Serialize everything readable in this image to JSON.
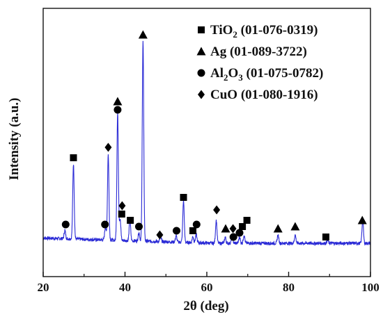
{
  "chart_data": {
    "type": "line",
    "xlabel": "2θ (deg)",
    "ylabel": "Intensity (a.u.)",
    "xlim": [
      20,
      100
    ],
    "ylim": [
      0,
      100
    ],
    "x_ticks": [
      "20",
      "40",
      "60",
      "80",
      "100"
    ],
    "y_ticks_shown": false,
    "grid": false,
    "legend_position": "top-right",
    "line_color": "#2b2bd6",
    "marker_color": "#000000",
    "legend": [
      {
        "marker": "square",
        "label_main": "TiO",
        "label_sub": "2",
        "label_rest": " (01-076-0319)",
        "label_full": "TiO2 (01-076-0319)"
      },
      {
        "marker": "triangle",
        "label_main": "Ag",
        "label_sub": "",
        "label_rest": " (01-089-3722)",
        "label_full": "Ag (01-089-3722)"
      },
      {
        "marker": "circle",
        "label_main": "Al",
        "label_sub": "2",
        "label_mid": "O",
        "label_sub2": "3",
        "label_rest": " (01-075-0782)",
        "label_full": "Al2O3 (01-075-0782)"
      },
      {
        "marker": "diamond",
        "label_main": "CuO",
        "label_sub": "",
        "label_rest": " (01-080-1916)",
        "label_full": "CuO (01-080-1916)"
      }
    ],
    "baseline": 4,
    "peaks": [
      {
        "x": 25.3,
        "h": 4
      },
      {
        "x": 27.4,
        "h": 36
      },
      {
        "x": 35.2,
        "h": 6
      },
      {
        "x": 35.9,
        "h": 41
      },
      {
        "x": 38.2,
        "h": 61
      },
      {
        "x": 38.8,
        "h": 10
      },
      {
        "x": 41.2,
        "h": 10
      },
      {
        "x": 43.4,
        "h": 4
      },
      {
        "x": 44.4,
        "h": 96
      },
      {
        "x": 48.7,
        "h": 2
      },
      {
        "x": 52.5,
        "h": 3
      },
      {
        "x": 54.3,
        "h": 20
      },
      {
        "x": 56.6,
        "h": 3
      },
      {
        "x": 57.4,
        "h": 4
      },
      {
        "x": 62.3,
        "h": 11
      },
      {
        "x": 64.5,
        "h": 3
      },
      {
        "x": 66.2,
        "h": 3
      },
      {
        "x": 68.0,
        "h": 3
      },
      {
        "x": 69.1,
        "h": 4
      },
      {
        "x": 77.4,
        "h": 4
      },
      {
        "x": 81.6,
        "h": 4
      },
      {
        "x": 89.5,
        "h": 1.5
      },
      {
        "x": 98.1,
        "h": 11
      }
    ],
    "phase_markers": [
      {
        "phase": "TiO2",
        "marker": "square",
        "x": 27.4,
        "y": 45
      },
      {
        "phase": "TiO2",
        "marker": "square",
        "x": 39.2,
        "y": 18
      },
      {
        "phase": "TiO2",
        "marker": "square",
        "x": 41.3,
        "y": 15
      },
      {
        "phase": "TiO2",
        "marker": "square",
        "x": 54.3,
        "y": 26
      },
      {
        "phase": "TiO2",
        "marker": "square",
        "x": 56.6,
        "y": 10
      },
      {
        "phase": "TiO2",
        "marker": "square",
        "x": 68.7,
        "y": 12
      },
      {
        "phase": "TiO2",
        "marker": "square",
        "x": 69.8,
        "y": 15
      },
      {
        "phase": "TiO2",
        "marker": "square",
        "x": 89.1,
        "y": 7
      },
      {
        "phase": "Ag",
        "marker": "triangle",
        "x": 38.2,
        "y": 72
      },
      {
        "phase": "Ag",
        "marker": "triangle",
        "x": 44.4,
        "y": 104
      },
      {
        "phase": "Ag",
        "marker": "triangle",
        "x": 64.6,
        "y": 11
      },
      {
        "phase": "Ag",
        "marker": "triangle",
        "x": 77.4,
        "y": 11
      },
      {
        "phase": "Ag",
        "marker": "triangle",
        "x": 81.6,
        "y": 12
      },
      {
        "phase": "Ag",
        "marker": "triangle",
        "x": 98.0,
        "y": 15
      },
      {
        "phase": "Al2O3",
        "marker": "circle",
        "x": 25.5,
        "y": 13
      },
      {
        "phase": "Al2O3",
        "marker": "circle",
        "x": 35.1,
        "y": 13
      },
      {
        "phase": "Al2O3",
        "marker": "circle",
        "x": 38.2,
        "y": 68
      },
      {
        "phase": "Al2O3",
        "marker": "circle",
        "x": 43.4,
        "y": 12
      },
      {
        "phase": "Al2O3",
        "marker": "circle",
        "x": 52.6,
        "y": 10
      },
      {
        "phase": "Al2O3",
        "marker": "circle",
        "x": 57.5,
        "y": 13
      },
      {
        "phase": "Al2O3",
        "marker": "circle",
        "x": 66.5,
        "y": 7
      },
      {
        "phase": "Al2O3",
        "marker": "circle",
        "x": 68.0,
        "y": 9
      },
      {
        "phase": "CuO",
        "marker": "diamond",
        "x": 35.9,
        "y": 50
      },
      {
        "phase": "CuO",
        "marker": "diamond",
        "x": 39.3,
        "y": 22
      },
      {
        "phase": "CuO",
        "marker": "diamond",
        "x": 48.5,
        "y": 8
      },
      {
        "phase": "CuO",
        "marker": "diamond",
        "x": 62.4,
        "y": 20
      },
      {
        "phase": "CuO",
        "marker": "diamond",
        "x": 66.4,
        "y": 11
      }
    ]
  }
}
